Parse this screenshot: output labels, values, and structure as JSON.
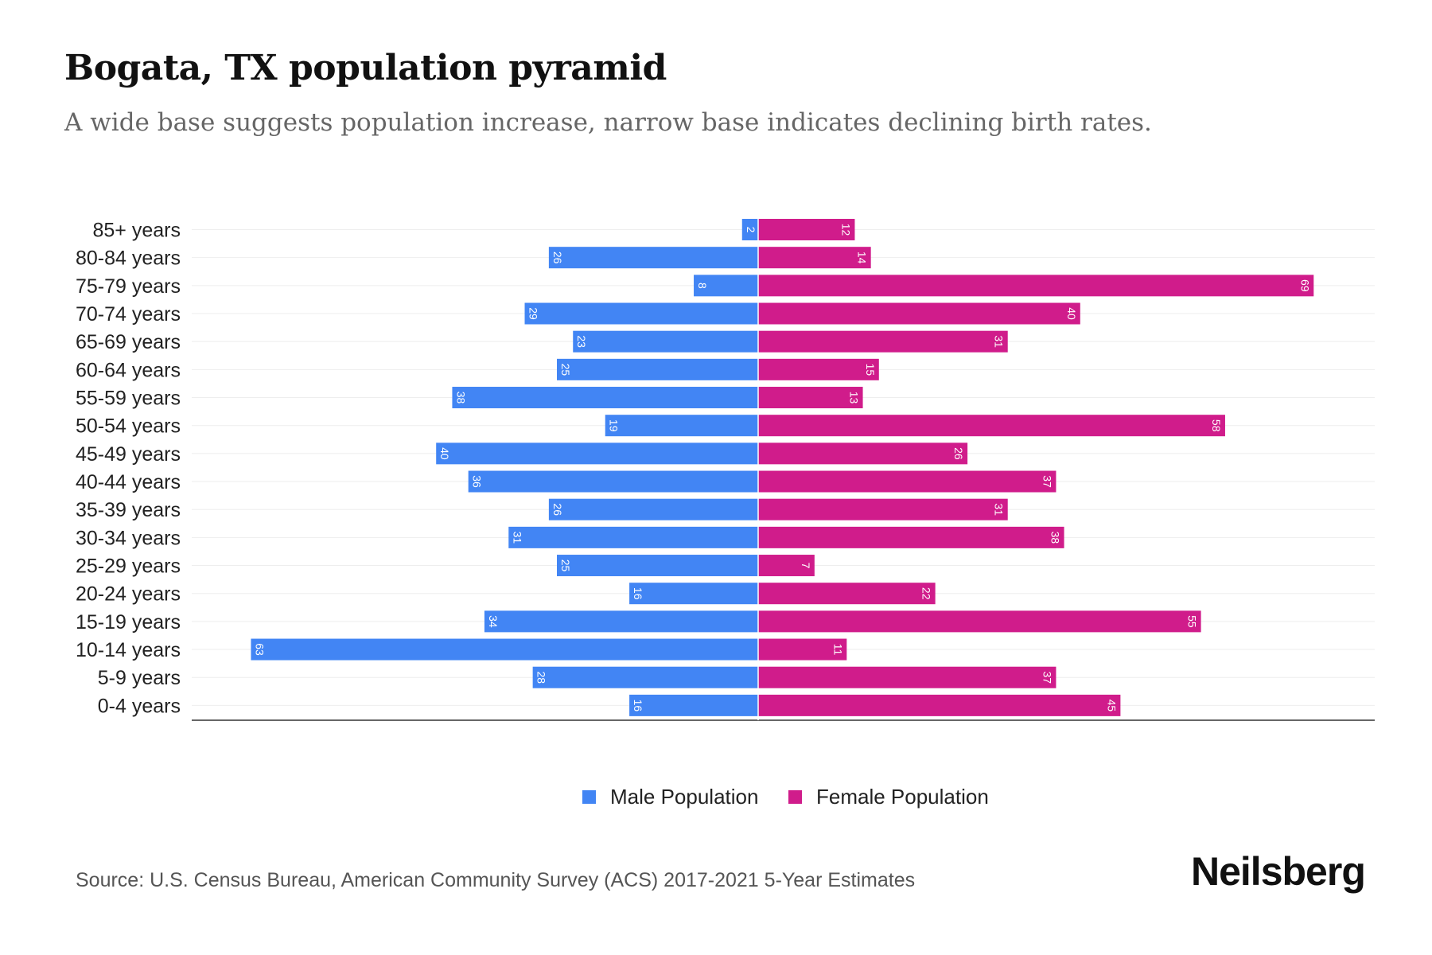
{
  "title": "Bogata, TX population pyramid",
  "subtitle": "A wide base suggests population increase, narrow base indicates declining birth rates.",
  "source": "Source: U.S. Census Bureau, American Community Survey (ACS) 2017-2021 5-Year Estimates",
  "logo": "Neilsberg",
  "colors": {
    "male": "#4285f4",
    "female": "#d01c8b"
  },
  "chart_data": {
    "type": "bar",
    "orientation": "horizontal-pyramid",
    "categories": [
      "85+ years",
      "80-84 years",
      "75-79 years",
      "70-74 years",
      "65-69 years",
      "60-64 years",
      "55-59 years",
      "50-54 years",
      "45-49 years",
      "40-44 years",
      "35-39 years",
      "30-34 years",
      "25-29 years",
      "20-24 years",
      "15-19 years",
      "10-14 years",
      "5-9 years",
      "0-4 years"
    ],
    "series": [
      {
        "name": "Male Population",
        "values": [
          2,
          26,
          8,
          29,
          23,
          25,
          38,
          19,
          40,
          36,
          26,
          31,
          25,
          16,
          34,
          63,
          28,
          16
        ]
      },
      {
        "name": "Female Population",
        "values": [
          12,
          14,
          69,
          40,
          31,
          15,
          13,
          58,
          26,
          37,
          31,
          38,
          7,
          22,
          55,
          11,
          37,
          45
        ]
      }
    ],
    "legend": "bottom-center",
    "grid": true
  }
}
